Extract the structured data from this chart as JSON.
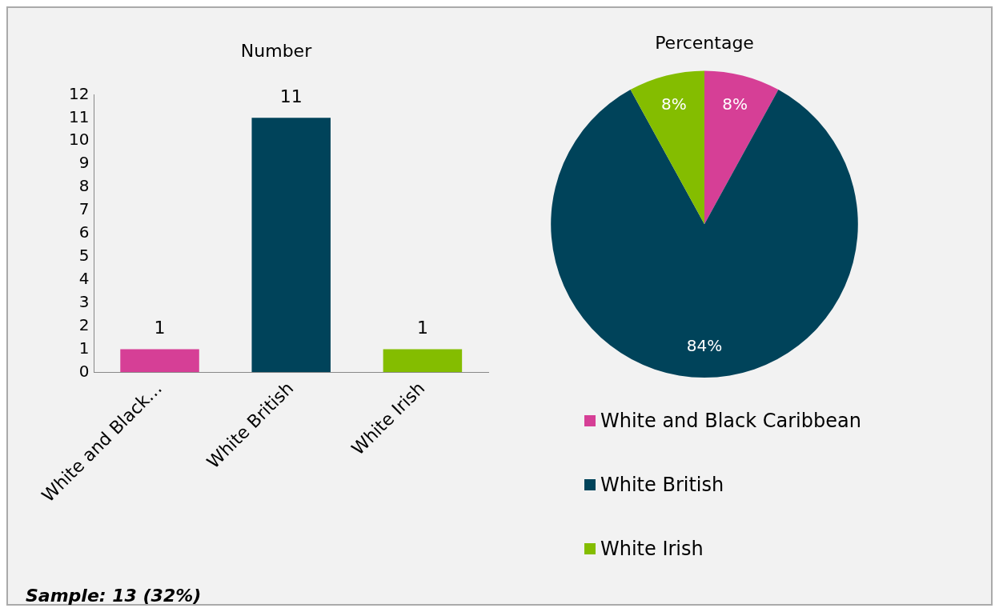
{
  "chart_data": [
    {
      "type": "bar",
      "title": "Number",
      "categories": [
        "White and Black…",
        "White British",
        "White Irish"
      ],
      "values": [
        1,
        11,
        1
      ],
      "colors": [
        "#d63f96",
        "#00435a",
        "#84bd00"
      ],
      "ylim": [
        0,
        12
      ],
      "yticks": [
        0,
        1,
        2,
        3,
        4,
        5,
        6,
        7,
        8,
        9,
        10,
        11,
        12
      ],
      "grid": false,
      "legend": false,
      "data_labels": true,
      "annotations": [
        "Sample: 13 (32%)"
      ]
    },
    {
      "type": "pie",
      "title": "Percentage",
      "categories": [
        "White and Black Caribbean",
        "White British",
        "White Irish"
      ],
      "values": [
        8,
        84,
        8
      ],
      "colors": [
        "#d63f96",
        "#00435a",
        "#84bd00"
      ],
      "value_labels": [
        "8%",
        "84%",
        "8%"
      ],
      "legend": "bottom"
    }
  ]
}
